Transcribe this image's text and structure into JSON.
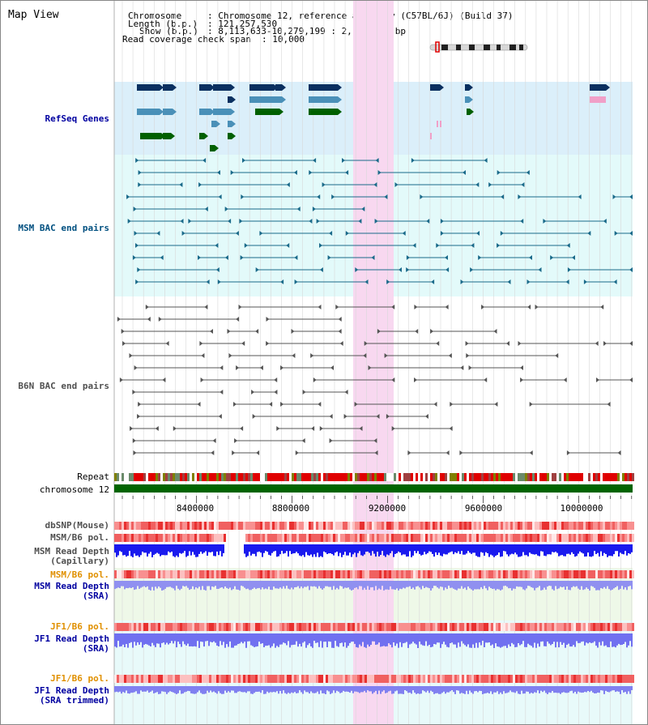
{
  "map_title": "Map View",
  "header": {
    "chromosome_label": "Chromosome",
    "chromosome_value": ": Chromosome 12, reference assembly (C57BL/6J) (Build 37)",
    "length_label": "Length (b.p.)",
    "length_value": ": 121,257,530",
    "show_label": "Show (b.p.)",
    "show_value": ": 8,113,633-10,279,199 : 2,165,567 bp",
    "span_label": "Read coverage check span",
    "span_value": ": 10,000"
  },
  "tracks": {
    "refseq_genes": "RefSeq Genes",
    "msm_bac": "MSM BAC end pairs",
    "b6n_bac": "B6N BAC end pairs",
    "repeat": "Repeat",
    "chromosome": "chromosome 12",
    "dbsnp": "dbSNP(Mouse)",
    "msm_b6_pol_1": "MSM/B6 pol.",
    "msm_read_depth_cap_1": "MSM Read Depth",
    "msm_read_depth_cap_2": "(Capillary)",
    "msm_b6_pol_2": "MSM/B6 pol.",
    "msm_read_depth_sra_1": "MSM Read Depth",
    "msm_read_depth_sra_2": "(SRA)",
    "jf1_b6_pol_1": "JF1/B6 pol.",
    "jf1_read_depth_sra_1": "JF1 Read Depth",
    "jf1_read_depth_sra_2": "(SRA)",
    "jf1_b6_pol_2": "JF1/B6 pol.",
    "jf1_read_depth_trim_1": "JF1 Read Depth",
    "jf1_read_depth_trim_2": "(SRA trimmed)"
  },
  "ruler_labels": [
    "8400000",
    "8800000",
    "9200000",
    "9600000",
    "10000000"
  ],
  "colors": {
    "refseq_bg": "#dbeffa",
    "bac_bg": "#e3fafa",
    "highlight": "#f8d8f0",
    "gene_dark": "#0a3060",
    "gene_mid": "#4a90b8",
    "gene_green": "#006000",
    "gene_pink": "#f0a0c8",
    "msm_label": "#005080",
    "b6n_label": "#505050",
    "dark_blue_label": "#0000a0",
    "orange_label": "#e09000",
    "chromosome_bar": "#006400"
  },
  "icons": {
    "ideogram": "chromosome-ideogram-icon"
  }
}
